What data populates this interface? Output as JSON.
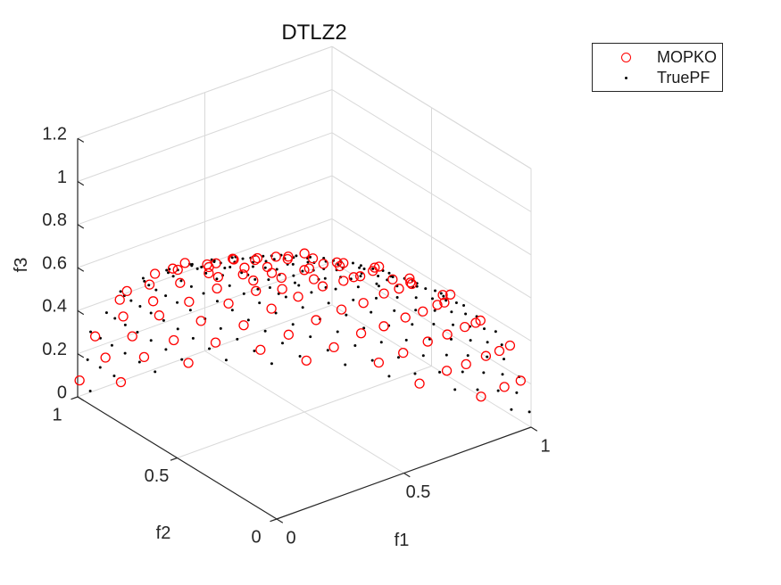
{
  "window": {
    "background": "#ffffff"
  },
  "style": {
    "grid_color": "#d9d9d9",
    "axis_color": "#262626",
    "tick_text_color": "#262626",
    "title_color": "#111111"
  },
  "legend": {
    "items": [
      {
        "label": "MOPKO",
        "marker": "hollow-circle",
        "color": "#ff0000"
      },
      {
        "label": "TruePF",
        "marker": "dot",
        "color": "#000000"
      }
    ],
    "border_color": "#262626",
    "position": "top-right-outside"
  },
  "chart_data": {
    "type": "scatter",
    "projection": "3d",
    "title": "DTLZ2",
    "xlabel": "f1",
    "ylabel": "f2",
    "zlabel": "f3",
    "xlim": [
      0,
      1
    ],
    "ylim": [
      0,
      1
    ],
    "zlim": [
      0,
      1.2
    ],
    "xticks": {
      "values": [
        0,
        0.5,
        1
      ],
      "labels": [
        "0",
        "0.5",
        "1"
      ]
    },
    "yticks": {
      "values": [
        0,
        0.5,
        1
      ],
      "labels": [
        "0",
        "0.5",
        "1"
      ]
    },
    "zticks": {
      "values": [
        0,
        0.2,
        0.4,
        0.6,
        0.8,
        1,
        1.2
      ],
      "labels": [
        "0",
        "0.2",
        "0.4",
        "0.6",
        "0.8",
        "1",
        "1.2"
      ]
    },
    "view_deg": {
      "azimuth": -37.5,
      "elevation": 30
    },
    "grid": true,
    "pareto_front_surface": "f1^2 + f2^2 + f3^2 = 1 with f1,f2,f3 >= 0 (first octant of the unit sphere)",
    "series": [
      {
        "name": "MOPKO",
        "marker": "hollow-circle",
        "color": "#ff0000",
        "marker_diameter_px": 10,
        "count": 100,
        "points_rule": {
          "kind": "fibonacci-sphere-octant",
          "seed": 5,
          "radial_jitter": 0.012
        }
      },
      {
        "name": "TruePF",
        "marker": "dot",
        "color": "#000000",
        "marker_diameter_px": 3,
        "count": 210,
        "points_rule": {
          "kind": "fibonacci-sphere-octant",
          "seed": 1,
          "radial_jitter": 0
        }
      }
    ]
  }
}
